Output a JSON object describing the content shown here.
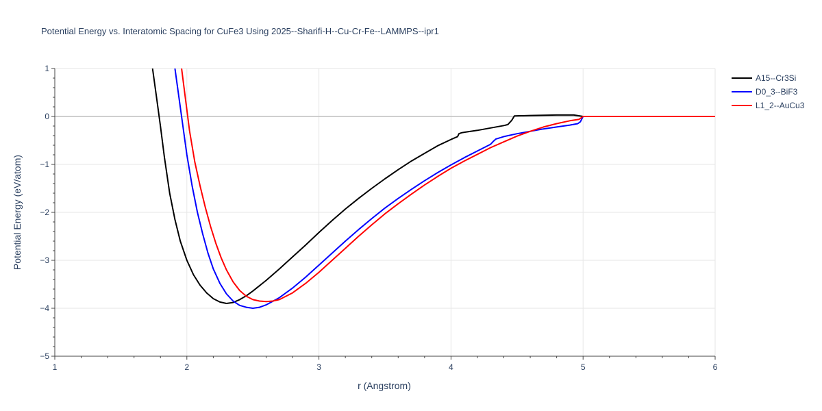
{
  "chart_data": {
    "type": "line",
    "title": "Potential Energy vs. Interatomic Spacing for CuFe3 Using 2025--Sharifi-H--Cu-Cr-Fe--LAMMPS--ipr1",
    "xlabel": "r (Angstrom)",
    "ylabel": "Potential Energy (eV/atom)",
    "xlim": [
      1,
      6
    ],
    "ylim": [
      -5,
      1
    ],
    "x_ticks": [
      "1",
      "2",
      "3",
      "4",
      "5",
      "6"
    ],
    "y_ticks": [
      "−5",
      "−4",
      "−3",
      "−2",
      "−1",
      "0",
      "1"
    ],
    "x_tick_values": [
      1,
      2,
      3,
      4,
      5,
      6
    ],
    "y_tick_values": [
      -5,
      -4,
      -3,
      -2,
      -1,
      0,
      1
    ],
    "grid": true,
    "legend_position": "top-right",
    "series": [
      {
        "name": "A15--Cr3Si",
        "color": "#000000",
        "points": [
          [
            1.74,
            1.0
          ],
          [
            1.77,
            0.4
          ],
          [
            1.8,
            -0.2
          ],
          [
            1.83,
            -0.85
          ],
          [
            1.87,
            -1.6
          ],
          [
            1.91,
            -2.15
          ],
          [
            1.95,
            -2.6
          ],
          [
            2.0,
            -3.0
          ],
          [
            2.05,
            -3.3
          ],
          [
            2.1,
            -3.52
          ],
          [
            2.15,
            -3.68
          ],
          [
            2.2,
            -3.8
          ],
          [
            2.25,
            -3.87
          ],
          [
            2.3,
            -3.9
          ],
          [
            2.35,
            -3.88
          ],
          [
            2.4,
            -3.82
          ],
          [
            2.45,
            -3.74
          ],
          [
            2.5,
            -3.64
          ],
          [
            2.6,
            -3.42
          ],
          [
            2.7,
            -3.18
          ],
          [
            2.8,
            -2.93
          ],
          [
            2.9,
            -2.68
          ],
          [
            3.0,
            -2.42
          ],
          [
            3.1,
            -2.17
          ],
          [
            3.2,
            -1.93
          ],
          [
            3.3,
            -1.71
          ],
          [
            3.4,
            -1.5
          ],
          [
            3.5,
            -1.3
          ],
          [
            3.6,
            -1.11
          ],
          [
            3.7,
            -0.93
          ],
          [
            3.8,
            -0.77
          ],
          [
            3.9,
            -0.61
          ],
          [
            4.0,
            -0.48
          ],
          [
            4.05,
            -0.42
          ],
          [
            4.06,
            -0.36
          ],
          [
            4.08,
            -0.34
          ],
          [
            4.1,
            -0.33
          ],
          [
            4.2,
            -0.29
          ],
          [
            4.3,
            -0.24
          ],
          [
            4.4,
            -0.19
          ],
          [
            4.43,
            -0.17
          ],
          [
            4.46,
            -0.08
          ],
          [
            4.48,
            0.01
          ],
          [
            4.6,
            0.02
          ],
          [
            4.8,
            0.03
          ],
          [
            4.93,
            0.03
          ],
          [
            5.0,
            0.0
          ],
          [
            6.0,
            0.0
          ]
        ]
      },
      {
        "name": "D0_3--BiF3",
        "color": "#0000ff",
        "points": [
          [
            1.91,
            1.0
          ],
          [
            1.94,
            0.4
          ],
          [
            1.97,
            -0.2
          ],
          [
            2.0,
            -0.8
          ],
          [
            2.04,
            -1.45
          ],
          [
            2.08,
            -2.0
          ],
          [
            2.12,
            -2.45
          ],
          [
            2.16,
            -2.85
          ],
          [
            2.2,
            -3.18
          ],
          [
            2.25,
            -3.48
          ],
          [
            2.3,
            -3.7
          ],
          [
            2.35,
            -3.85
          ],
          [
            2.4,
            -3.94
          ],
          [
            2.45,
            -3.98
          ],
          [
            2.5,
            -4.0
          ],
          [
            2.55,
            -3.98
          ],
          [
            2.6,
            -3.93
          ],
          [
            2.7,
            -3.78
          ],
          [
            2.8,
            -3.58
          ],
          [
            2.9,
            -3.35
          ],
          [
            3.0,
            -3.1
          ],
          [
            3.1,
            -2.85
          ],
          [
            3.2,
            -2.6
          ],
          [
            3.3,
            -2.36
          ],
          [
            3.4,
            -2.13
          ],
          [
            3.5,
            -1.91
          ],
          [
            3.6,
            -1.71
          ],
          [
            3.7,
            -1.52
          ],
          [
            3.8,
            -1.34
          ],
          [
            3.9,
            -1.17
          ],
          [
            4.0,
            -1.01
          ],
          [
            4.1,
            -0.86
          ],
          [
            4.2,
            -0.72
          ],
          [
            4.3,
            -0.58
          ],
          [
            4.32,
            -0.52
          ],
          [
            4.34,
            -0.47
          ],
          [
            4.4,
            -0.42
          ],
          [
            4.5,
            -0.36
          ],
          [
            4.6,
            -0.31
          ],
          [
            4.7,
            -0.26
          ],
          [
            4.8,
            -0.22
          ],
          [
            4.9,
            -0.18
          ],
          [
            4.96,
            -0.15
          ],
          [
            4.98,
            -0.11
          ],
          [
            5.0,
            0.0
          ],
          [
            6.0,
            0.0
          ]
        ]
      },
      {
        "name": "L1_2--AuCu3",
        "color": "#ff0000",
        "points": [
          [
            1.96,
            1.0
          ],
          [
            1.99,
            0.35
          ],
          [
            2.02,
            -0.3
          ],
          [
            2.06,
            -0.95
          ],
          [
            2.1,
            -1.45
          ],
          [
            2.14,
            -1.9
          ],
          [
            2.18,
            -2.3
          ],
          [
            2.22,
            -2.65
          ],
          [
            2.26,
            -2.95
          ],
          [
            2.3,
            -3.2
          ],
          [
            2.35,
            -3.45
          ],
          [
            2.4,
            -3.63
          ],
          [
            2.45,
            -3.75
          ],
          [
            2.5,
            -3.82
          ],
          [
            2.55,
            -3.85
          ],
          [
            2.6,
            -3.86
          ],
          [
            2.65,
            -3.85
          ],
          [
            2.7,
            -3.82
          ],
          [
            2.8,
            -3.68
          ],
          [
            2.9,
            -3.48
          ],
          [
            3.0,
            -3.25
          ],
          [
            3.1,
            -3.0
          ],
          [
            3.2,
            -2.75
          ],
          [
            3.3,
            -2.5
          ],
          [
            3.4,
            -2.26
          ],
          [
            3.5,
            -2.03
          ],
          [
            3.6,
            -1.82
          ],
          [
            3.7,
            -1.62
          ],
          [
            3.8,
            -1.43
          ],
          [
            3.9,
            -1.25
          ],
          [
            4.0,
            -1.08
          ],
          [
            4.1,
            -0.93
          ],
          [
            4.2,
            -0.79
          ],
          [
            4.3,
            -0.65
          ],
          [
            4.4,
            -0.53
          ],
          [
            4.5,
            -0.41
          ],
          [
            4.6,
            -0.31
          ],
          [
            4.7,
            -0.22
          ],
          [
            4.8,
            -0.15
          ],
          [
            4.9,
            -0.09
          ],
          [
            4.97,
            -0.06
          ],
          [
            5.0,
            0.0
          ],
          [
            6.0,
            0.0
          ]
        ]
      }
    ]
  }
}
